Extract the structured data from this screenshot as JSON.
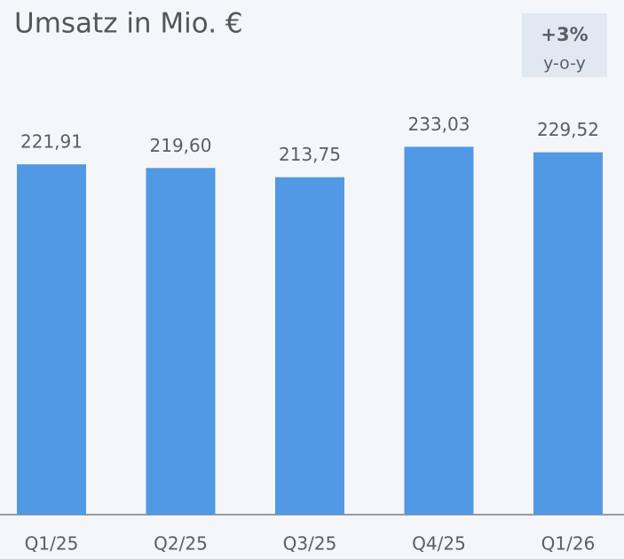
{
  "chart_data": {
    "type": "bar",
    "title": "Umsatz in Mio. €",
    "badge": {
      "text": "+3%",
      "subtitle": "y-o-y"
    },
    "categories": [
      "Q1/25",
      "Q2/25",
      "Q3/25",
      "Q4/25",
      "Q1/26"
    ],
    "values": [
      221.91,
      219.6,
      213.75,
      233.03,
      229.52
    ],
    "value_labels": [
      "221,91",
      "219,60",
      "213,75",
      "233,03",
      "229,52"
    ],
    "color": "#5199e4",
    "ylim": [
      0,
      326
    ]
  }
}
